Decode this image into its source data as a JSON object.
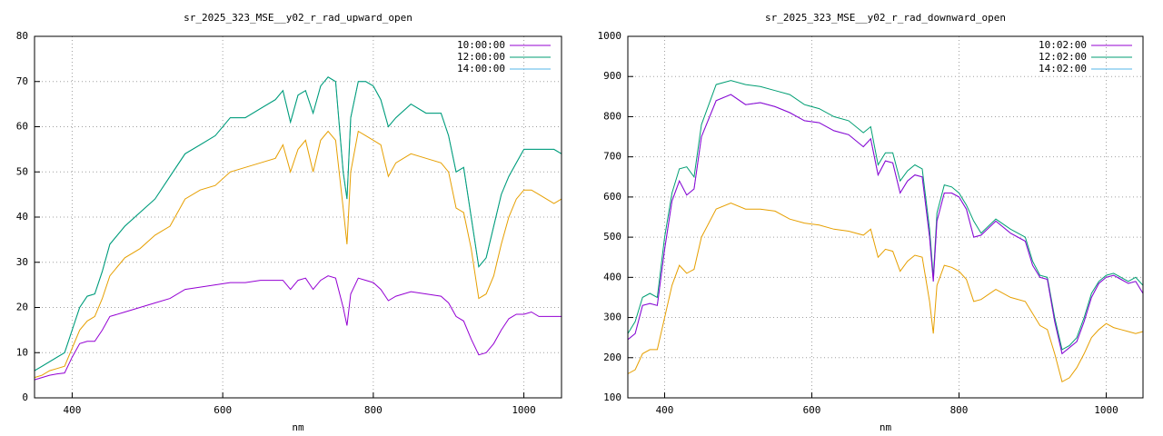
{
  "chart_data": [
    {
      "type": "line",
      "title": "sr_2025_323_MSE__y02_r_rad_upward_open",
      "xlabel": "nm",
      "x": [
        350,
        360,
        370,
        380,
        390,
        400,
        410,
        420,
        430,
        440,
        450,
        470,
        490,
        510,
        530,
        550,
        570,
        590,
        610,
        630,
        650,
        670,
        680,
        690,
        700,
        710,
        720,
        730,
        740,
        750,
        760,
        765,
        770,
        780,
        790,
        800,
        810,
        820,
        830,
        850,
        870,
        890,
        900,
        910,
        920,
        930,
        940,
        950,
        960,
        970,
        980,
        990,
        1000,
        1010,
        1020,
        1030,
        1040,
        1050
      ],
      "xlim": [
        350,
        1050
      ],
      "xticks": [
        400,
        600,
        800,
        1000
      ],
      "ylim": [
        0,
        80
      ],
      "yticks": [
        0,
        10,
        20,
        30,
        40,
        50,
        60,
        70,
        80
      ],
      "grid": true,
      "legend": "top-right",
      "series": [
        {
          "name": "10:00:00",
          "color": "#9400d3",
          "values": [
            4,
            4.5,
            5,
            5.3,
            5.5,
            9,
            12,
            12.5,
            12.5,
            15,
            18,
            19,
            20,
            21,
            22,
            24,
            24.5,
            25,
            25.5,
            25.5,
            26,
            26,
            26,
            24,
            26,
            26.5,
            24,
            26,
            27,
            26.5,
            20,
            16,
            23,
            26.5,
            26,
            25.5,
            24,
            21.5,
            22.5,
            23.5,
            23,
            22.5,
            21,
            18,
            17,
            13,
            9.5,
            10,
            12,
            15,
            17.5,
            18.5,
            18.5,
            19,
            18,
            18,
            18,
            18
          ]
        },
        {
          "name": "12:00:00",
          "color": "#009e73",
          "values": [
            6,
            7,
            8,
            9,
            10,
            15,
            20,
            22.5,
            23,
            28,
            34,
            38,
            41,
            44,
            49,
            54,
            56,
            58,
            62,
            62,
            64,
            66,
            68,
            61,
            67,
            68,
            63,
            69,
            71,
            70,
            50,
            44,
            62,
            70,
            70,
            69,
            66,
            60,
            62,
            65,
            63,
            63,
            58,
            50,
            51,
            40,
            29,
            31,
            38,
            45,
            49,
            52,
            55,
            55,
            55,
            55,
            55,
            54
          ]
        },
        {
          "name": "14:00:00",
          "color": "#56b4e9",
          "values": [
            6,
            7,
            8,
            9,
            10,
            15,
            20,
            22.5,
            23,
            28,
            34,
            38,
            41,
            44,
            49,
            54,
            56,
            58,
            62,
            62,
            64,
            66,
            68,
            61,
            67,
            68,
            63,
            69,
            71,
            70,
            50,
            44,
            62,
            70,
            70,
            69,
            66,
            60,
            62,
            65,
            63,
            63,
            58,
            50,
            51,
            40,
            29,
            31,
            38,
            45,
            49,
            52,
            55,
            55,
            55,
            55,
            55,
            54
          ]
        },
        {
          "color": "#e69f00",
          "values": [
            4.5,
            5,
            6,
            6.5,
            7,
            11,
            15,
            17,
            18,
            22,
            27,
            31,
            33,
            36,
            38,
            44,
            46,
            47,
            50,
            51,
            52,
            53,
            56,
            50,
            55,
            57,
            50,
            57,
            59,
            57,
            42,
            34,
            50,
            59,
            58,
            57,
            56,
            49,
            52,
            54,
            53,
            52,
            50,
            42,
            41,
            33,
            22,
            23,
            27,
            34,
            40,
            44,
            46,
            46,
            45,
            44,
            43,
            44
          ]
        }
      ]
    },
    {
      "type": "line",
      "title": "sr_2025_323_MSE__y02_r_rad_downward_open",
      "xlabel": "nm",
      "x": [
        350,
        360,
        370,
        380,
        390,
        400,
        410,
        420,
        430,
        440,
        450,
        470,
        490,
        510,
        530,
        550,
        570,
        590,
        610,
        630,
        650,
        670,
        680,
        690,
        700,
        710,
        720,
        730,
        740,
        750,
        760,
        765,
        770,
        780,
        790,
        800,
        810,
        820,
        830,
        850,
        870,
        890,
        900,
        910,
        920,
        930,
        940,
        950,
        960,
        970,
        980,
        990,
        1000,
        1010,
        1020,
        1030,
        1040,
        1050
      ],
      "xlim": [
        350,
        1050
      ],
      "xticks": [
        400,
        600,
        800,
        1000
      ],
      "ylim": [
        100,
        1000
      ],
      "yticks": [
        100,
        200,
        300,
        400,
        500,
        600,
        700,
        800,
        900,
        1000
      ],
      "grid": true,
      "legend": "top-right",
      "series": [
        {
          "name": "10:02:00",
          "color": "#9400d3",
          "values": [
            245,
            260,
            330,
            335,
            330,
            470,
            590,
            640,
            605,
            620,
            750,
            840,
            855,
            830,
            835,
            825,
            810,
            790,
            785,
            765,
            755,
            725,
            745,
            655,
            690,
            685,
            610,
            640,
            655,
            650,
            500,
            390,
            540,
            610,
            610,
            600,
            570,
            500,
            505,
            540,
            510,
            490,
            430,
            400,
            395,
            290,
            210,
            225,
            240,
            290,
            350,
            385,
            400,
            405,
            395,
            385,
            390,
            360
          ]
        },
        {
          "name": "12:02:00",
          "color": "#009e73",
          "values": [
            260,
            290,
            350,
            360,
            350,
            500,
            610,
            670,
            675,
            650,
            780,
            880,
            890,
            880,
            875,
            865,
            855,
            830,
            820,
            800,
            790,
            760,
            775,
            680,
            710,
            710,
            640,
            665,
            680,
            670,
            520,
            400,
            560,
            630,
            625,
            610,
            580,
            540,
            510,
            545,
            520,
            500,
            440,
            405,
            400,
            300,
            220,
            230,
            250,
            300,
            360,
            390,
            405,
            410,
            400,
            390,
            400,
            380
          ]
        },
        {
          "name": "14:02:00",
          "color": "#56b4e9",
          "values": [
            245,
            260,
            330,
            335,
            330,
            470,
            590,
            640,
            605,
            620,
            750,
            840,
            855,
            830,
            835,
            825,
            810,
            790,
            785,
            765,
            755,
            725,
            745,
            655,
            690,
            685,
            610,
            640,
            655,
            650,
            500,
            390,
            540,
            610,
            610,
            600,
            570,
            500,
            505,
            540,
            510,
            490,
            430,
            400,
            395,
            290,
            210,
            225,
            240,
            290,
            350,
            385,
            400,
            405,
            395,
            385,
            390,
            360
          ]
        },
        {
          "color": "#e69f00",
          "values": [
            160,
            170,
            210,
            220,
            220,
            300,
            380,
            430,
            410,
            420,
            500,
            570,
            585,
            570,
            570,
            565,
            545,
            535,
            530,
            520,
            515,
            505,
            520,
            450,
            470,
            465,
            415,
            440,
            455,
            450,
            340,
            260,
            380,
            430,
            425,
            415,
            395,
            340,
            345,
            370,
            350,
            340,
            310,
            280,
            270,
            210,
            140,
            150,
            175,
            210,
            250,
            270,
            285,
            275,
            270,
            265,
            260,
            265
          ]
        }
      ]
    }
  ]
}
